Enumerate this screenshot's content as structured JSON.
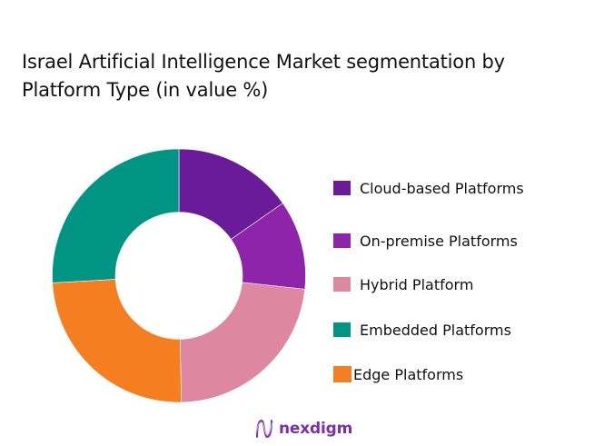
{
  "title": {
    "line1": "Israel Artificial Intelligence Market segmentation by",
    "line2": "Platform Type (in value %)"
  },
  "chart_data": {
    "type": "pie",
    "subtype": "donut",
    "title": "Israel Artificial Intelligence Market segmentation by Platform Type (in value %)",
    "categories": [
      "Cloud-based Platforms",
      "On-premise Platforms",
      "Hybrid Platform",
      "Edge Platforms",
      "Embedded Platforms"
    ],
    "values": [
      15.3,
      11.4,
      23.0,
      24.4,
      25.9
    ],
    "colors": [
      "#6a1b9a",
      "#8e24aa",
      "#de87a1",
      "#f57f20",
      "#009485"
    ],
    "unit": "%",
    "legend_position": "right",
    "start_angle_deg": 0,
    "direction": "clockwise",
    "data_labels": false
  },
  "legend": [
    {
      "label": "Cloud-based Platforms",
      "color": "#6a1b9a"
    },
    {
      "label": "On-premise Platforms",
      "color": "#8e24aa"
    },
    {
      "label": "Hybrid Platform",
      "color": "#de87a1"
    },
    {
      "label": "Embedded Platforms",
      "color": "#009485"
    },
    {
      "label": "Edge Platforms",
      "color": "#f57f20"
    }
  ],
  "brand": {
    "name": "nexdigm",
    "color": "#7b2fa8",
    "icon": "nexdigm-wave-logo-icon"
  }
}
